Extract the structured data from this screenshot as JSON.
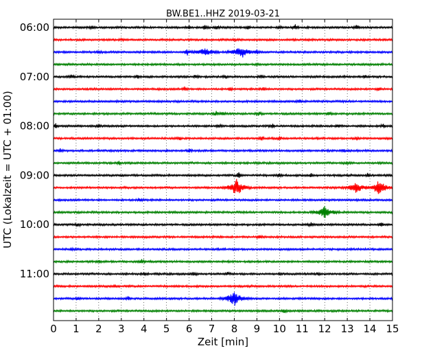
{
  "chart_data": {
    "type": "line",
    "title": "BW.BE1..HHZ 2019-03-21",
    "xlabel": "Zeit  [min]",
    "ylabel": "UTC (Lokalzeit = UTC + 01:00)",
    "xlim": [
      0,
      15
    ],
    "x_ticks": [
      "0",
      "1",
      "2",
      "3",
      "4",
      "5",
      "6",
      "7",
      "8",
      "9",
      "10",
      "11",
      "12",
      "13",
      "14",
      "15"
    ],
    "y_tick_labels": [
      "06:00",
      "07:00",
      "08:00",
      "09:00",
      "10:00",
      "11:00"
    ],
    "grid": "vertical-dotted",
    "color_cycle": [
      "#000000",
      "#ff0000",
      "#0000ff",
      "#008000"
    ],
    "traces": [
      {
        "start": "06:00",
        "events": [
          [
            1.7,
            0.4
          ],
          [
            6.0,
            0.4
          ],
          [
            6.7,
            0.5
          ],
          [
            7.2,
            0.4
          ],
          [
            8.6,
            0.4
          ],
          [
            10.0,
            0.4
          ],
          [
            10.7,
            0.7
          ],
          [
            13.4,
            0.6
          ]
        ]
      },
      {
        "start": "06:15",
        "events": [
          [
            3.0,
            0.2
          ],
          [
            8.0,
            0.2
          ]
        ]
      },
      {
        "start": "06:30",
        "events": [
          [
            2.0,
            0.2
          ],
          [
            5.9,
            1.0
          ],
          [
            6.7,
            1.1
          ],
          [
            8.3,
            1.6
          ],
          [
            9.0,
            0.5
          ]
        ]
      },
      {
        "start": "06:45",
        "events": [
          [
            9.0,
            0.2
          ]
        ]
      },
      {
        "start": "07:00",
        "events": [
          [
            0.8,
            0.4
          ],
          [
            3.7,
            0.4
          ],
          [
            6.3,
            0.5
          ],
          [
            7.6,
            0.4
          ],
          [
            9.2,
            0.5
          ],
          [
            13.8,
            0.4
          ]
        ]
      },
      {
        "start": "07:15",
        "events": [
          [
            5.8,
            0.5
          ],
          [
            7.8,
            0.4
          ],
          [
            9.3,
            0.5
          ],
          [
            14.4,
            0.5
          ]
        ]
      },
      {
        "start": "07:30",
        "events": [
          [
            10.9,
            0.5
          ]
        ]
      },
      {
        "start": "07:45",
        "events": [
          [
            7.2,
            0.6
          ],
          [
            7.5,
            0.5
          ],
          [
            9.1,
            0.5
          ],
          [
            12.2,
            0.5
          ]
        ]
      },
      {
        "start": "08:00",
        "events": [
          [
            0.1,
            0.6
          ],
          [
            2.0,
            0.4
          ],
          [
            7.3,
            0.5
          ],
          [
            9.7,
            0.5
          ],
          [
            12.6,
            0.6
          ],
          [
            14.6,
            0.5
          ]
        ]
      },
      {
        "start": "08:15",
        "events": [
          [
            5.6,
            0.4
          ],
          [
            9.2,
            0.5
          ],
          [
            10.0,
            0.5
          ],
          [
            13.4,
            0.5
          ]
        ]
      },
      {
        "start": "08:30",
        "events": [
          [
            0.3,
            0.4
          ],
          [
            6.0,
            0.4
          ],
          [
            12.8,
            0.6
          ]
        ]
      },
      {
        "start": "08:45",
        "events": [
          [
            2.9,
            0.5
          ],
          [
            13.0,
            0.4
          ]
        ]
      },
      {
        "start": "09:00",
        "events": [
          [
            3.0,
            0.4
          ],
          [
            8.2,
            0.8
          ],
          [
            10.0,
            0.4
          ],
          [
            11.4,
            0.4
          ],
          [
            13.9,
            0.4
          ]
        ]
      },
      {
        "start": "09:15",
        "events": [
          [
            8.1,
            2.2
          ],
          [
            13.4,
            1.3
          ],
          [
            14.4,
            1.9
          ]
        ]
      },
      {
        "start": "09:30",
        "events": [
          [
            3.8,
            0.5
          ]
        ]
      },
      {
        "start": "09:45",
        "events": [
          [
            12.0,
            1.6
          ]
        ]
      },
      {
        "start": "10:00",
        "events": [
          [
            1.1,
            0.4
          ],
          [
            11.4,
            0.5
          ],
          [
            14.5,
            0.6
          ]
        ]
      },
      {
        "start": "10:15",
        "events": [
          [
            9.1,
            0.4
          ]
        ]
      },
      {
        "start": "10:30",
        "events": [
          [
            0.8,
            0.2
          ]
        ]
      },
      {
        "start": "10:45",
        "events": [
          [
            2.0,
            0.3
          ],
          [
            3.9,
            0.6
          ]
        ]
      },
      {
        "start": "11:00",
        "events": [
          [
            4.0,
            0.3
          ],
          [
            6.2,
            0.5
          ],
          [
            7.7,
            0.3
          ],
          [
            11.7,
            0.4
          ]
        ]
      },
      {
        "start": "11:15",
        "events": [
          [
            2.7,
            0.4
          ]
        ]
      },
      {
        "start": "11:30",
        "events": [
          [
            1.1,
            0.5
          ],
          [
            3.3,
            0.5
          ],
          [
            8.0,
            1.8
          ]
        ]
      },
      {
        "start": "11:45",
        "events": [
          [
            10.2,
            0.6
          ]
        ]
      }
    ]
  }
}
